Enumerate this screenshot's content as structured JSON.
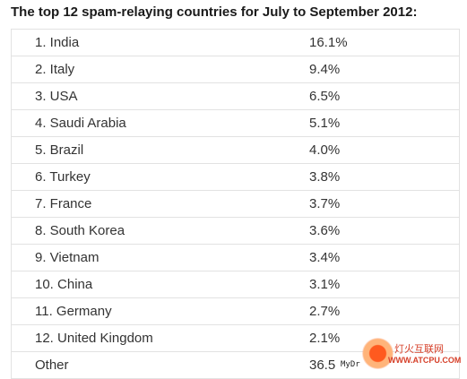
{
  "title": "The top 12 spam-relaying countries for July to September 2012:",
  "rows": [
    {
      "country": "1. India",
      "percent": "16.1%"
    },
    {
      "country": "2. Italy",
      "percent": "9.4%"
    },
    {
      "country": "3. USA",
      "percent": "6.5%"
    },
    {
      "country": "4. Saudi Arabia",
      "percent": "5.1%"
    },
    {
      "country": "5. Brazil",
      "percent": "4.0%"
    },
    {
      "country": "6. Turkey",
      "percent": "3.8%"
    },
    {
      "country": "7. France",
      "percent": "3.7%"
    },
    {
      "country": "8. South Korea",
      "percent": "3.6%"
    },
    {
      "country": "9. Vietnam",
      "percent": "3.4%"
    },
    {
      "country": "10. China",
      "percent": "3.1%"
    },
    {
      "country": "11. Germany",
      "percent": "2.7%"
    },
    {
      "country": "12. United Kingdom",
      "percent": "2.1%"
    },
    {
      "country": "Other",
      "percent": "36.5"
    }
  ],
  "watermark": {
    "site_name": "灯火互联网",
    "url": "WWW.ATCPU.COM",
    "tag": "MyDr"
  }
}
